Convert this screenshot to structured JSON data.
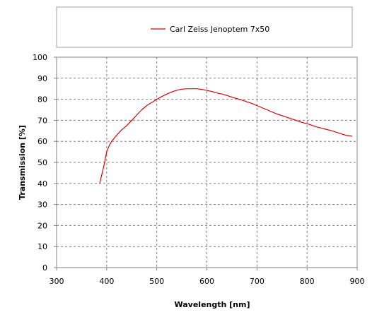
{
  "chart_data": {
    "type": "line",
    "title": "",
    "xlabel": "Wavelength [nm]",
    "ylabel": "Transmission [%]",
    "xlim": [
      300,
      900
    ],
    "ylim": [
      0,
      100
    ],
    "x_ticks": [
      300,
      400,
      500,
      600,
      700,
      800,
      900
    ],
    "y_ticks": [
      0,
      10,
      20,
      30,
      40,
      50,
      60,
      70,
      80,
      90,
      100
    ],
    "grid": true,
    "legend_position": "top",
    "series": [
      {
        "name": "Carl Zeiss Jenoptem 7x50",
        "color": "#e00000",
        "x": [
          386,
          390,
          395,
          400,
          405,
          410,
          420,
          430,
          440,
          450,
          460,
          470,
          480,
          490,
          500,
          510,
          520,
          530,
          540,
          550,
          560,
          570,
          580,
          590,
          600,
          610,
          620,
          630,
          640,
          650,
          660,
          670,
          680,
          690,
          700,
          710,
          720,
          730,
          740,
          750,
          760,
          770,
          780,
          790,
          800,
          810,
          820,
          830,
          840,
          850,
          860,
          870,
          880,
          890
        ],
        "y": [
          40,
          44,
          49,
          55,
          58,
          60,
          63,
          65.5,
          67.5,
          70,
          72.5,
          75,
          77,
          78.5,
          80,
          81.3,
          82.5,
          83.5,
          84.3,
          84.8,
          85,
          85,
          85,
          84.7,
          84.2,
          83.7,
          83,
          82.5,
          81.8,
          81,
          80.3,
          79.6,
          78.8,
          78,
          77,
          76,
          75,
          74,
          73,
          72.2,
          71.4,
          70.6,
          69.8,
          69,
          68.4,
          67.6,
          66.8,
          66.2,
          65.6,
          65,
          64.2,
          63.4,
          62.8,
          62.5
        ]
      }
    ]
  }
}
